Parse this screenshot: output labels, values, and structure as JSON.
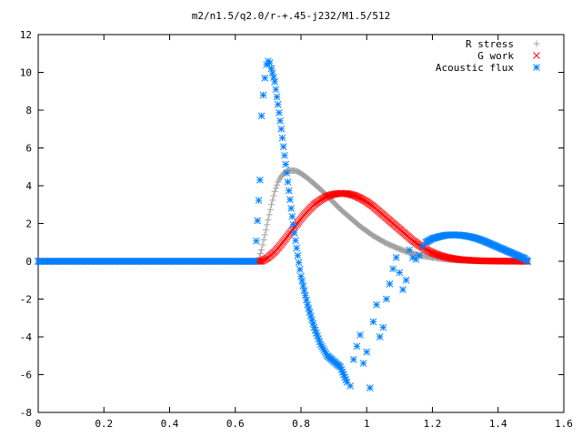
{
  "chart_data": {
    "type": "scatter",
    "title": "m2/n1.5/q2.0/r-+.45-j232/M1.5/512",
    "xlabel": "",
    "ylabel": "",
    "xlim": [
      0,
      1.6
    ],
    "ylim": [
      -8,
      12
    ],
    "xticks": [
      "0",
      "0.2",
      "0.4",
      "0.6",
      "0.8",
      "1",
      "1.2",
      "1.4",
      "1.6"
    ],
    "yticks": [
      "-8",
      "-6",
      "-4",
      "-2",
      "0",
      "2",
      "4",
      "6",
      "8",
      "10",
      "12"
    ],
    "grid": false,
    "legend_position": "top-right",
    "series": [
      {
        "name": "R stress",
        "marker": "plus",
        "color": "#a0a0a0",
        "x": [
          0.0,
          0.1,
          0.2,
          0.3,
          0.4,
          0.5,
          0.6,
          0.67,
          0.68,
          0.69,
          0.7,
          0.71,
          0.72,
          0.73,
          0.74,
          0.75,
          0.76,
          0.77,
          0.78,
          0.79,
          0.8,
          0.82,
          0.84,
          0.86,
          0.88,
          0.9,
          0.92,
          0.94,
          0.96,
          0.98,
          1.0,
          1.02,
          1.04,
          1.06,
          1.08,
          1.1,
          1.12,
          1.14,
          1.16,
          1.18,
          1.2,
          1.22,
          1.24,
          1.26,
          1.28,
          1.3,
          1.34,
          1.38,
          1.42,
          1.46,
          1.49
        ],
        "y": [
          0,
          0,
          0,
          0,
          0,
          0,
          0,
          0,
          0.6,
          1.4,
          2.2,
          3.0,
          3.7,
          4.2,
          4.5,
          4.7,
          4.8,
          4.8,
          4.8,
          4.75,
          4.65,
          4.4,
          4.1,
          3.8,
          3.45,
          3.1,
          2.75,
          2.45,
          2.15,
          1.85,
          1.6,
          1.35,
          1.15,
          0.95,
          0.8,
          0.65,
          0.52,
          0.42,
          0.33,
          0.26,
          0.2,
          0.15,
          0.11,
          0.08,
          0.06,
          0.04,
          0.02,
          0.01,
          0.005,
          0.002,
          0
        ]
      },
      {
        "name": "G work",
        "marker": "cross",
        "color": "#ff0000",
        "x": [
          0.0,
          0.1,
          0.2,
          0.3,
          0.4,
          0.5,
          0.6,
          0.68,
          0.7,
          0.72,
          0.74,
          0.76,
          0.78,
          0.8,
          0.82,
          0.84,
          0.86,
          0.88,
          0.9,
          0.92,
          0.94,
          0.96,
          0.98,
          1.0,
          1.02,
          1.04,
          1.06,
          1.08,
          1.1,
          1.12,
          1.14,
          1.16,
          1.18,
          1.2,
          1.22,
          1.24,
          1.26,
          1.28,
          1.3,
          1.34,
          1.38,
          1.42,
          1.46,
          1.49
        ],
        "y": [
          0,
          0,
          0,
          0,
          0,
          0,
          0,
          0,
          0.2,
          0.5,
          0.9,
          1.35,
          1.8,
          2.25,
          2.65,
          3.0,
          3.25,
          3.45,
          3.55,
          3.6,
          3.58,
          3.5,
          3.35,
          3.15,
          2.9,
          2.6,
          2.3,
          2.0,
          1.7,
          1.4,
          1.1,
          0.85,
          0.63,
          0.45,
          0.32,
          0.22,
          0.15,
          0.1,
          0.07,
          0.03,
          0.015,
          0.006,
          0.002,
          0
        ]
      },
      {
        "name": "Acoustic flux",
        "marker": "star",
        "color": "#0080ff",
        "x": [
          0.0,
          0.1,
          0.2,
          0.3,
          0.4,
          0.5,
          0.6,
          0.66,
          0.675,
          0.68,
          0.685,
          0.69,
          0.695,
          0.7,
          0.705,
          0.71,
          0.72,
          0.73,
          0.74,
          0.75,
          0.76,
          0.77,
          0.78,
          0.79,
          0.8,
          0.82,
          0.84,
          0.86,
          0.88,
          0.9,
          0.92,
          0.94,
          0.95,
          0.96,
          0.97,
          0.98,
          0.99,
          1.0,
          1.01,
          1.02,
          1.03,
          1.04,
          1.05,
          1.06,
          1.07,
          1.08,
          1.09,
          1.1,
          1.11,
          1.12,
          1.13,
          1.14,
          1.15,
          1.16,
          1.17,
          1.18,
          1.2,
          1.22,
          1.24,
          1.26,
          1.28,
          1.3,
          1.32,
          1.34,
          1.36,
          1.38,
          1.4,
          1.42,
          1.44,
          1.46,
          1.48,
          1.49
        ],
        "y": [
          0,
          0,
          0,
          0,
          0,
          0,
          0,
          0,
          4.3,
          7.7,
          8.8,
          9.7,
          10.4,
          10.6,
          10.5,
          10.2,
          9.5,
          8.3,
          7.0,
          5.6,
          4.2,
          2.8,
          1.5,
          0.3,
          -0.8,
          -2.3,
          -3.5,
          -4.4,
          -5.0,
          -5.3,
          -5.6,
          -6.4,
          -6.6,
          -5.2,
          -4.5,
          -3.9,
          -5.4,
          -4.8,
          -6.7,
          -3.2,
          -2.3,
          -4.0,
          -3.5,
          -2.0,
          -1.2,
          -0.4,
          0.2,
          -0.6,
          -1.5,
          -1.0,
          0.6,
          0.2,
          0.1,
          0.3,
          0.8,
          1.0,
          1.2,
          1.3,
          1.38,
          1.4,
          1.39,
          1.35,
          1.28,
          1.18,
          1.05,
          0.9,
          0.75,
          0.6,
          0.45,
          0.3,
          0.15,
          0
        ]
      }
    ]
  }
}
